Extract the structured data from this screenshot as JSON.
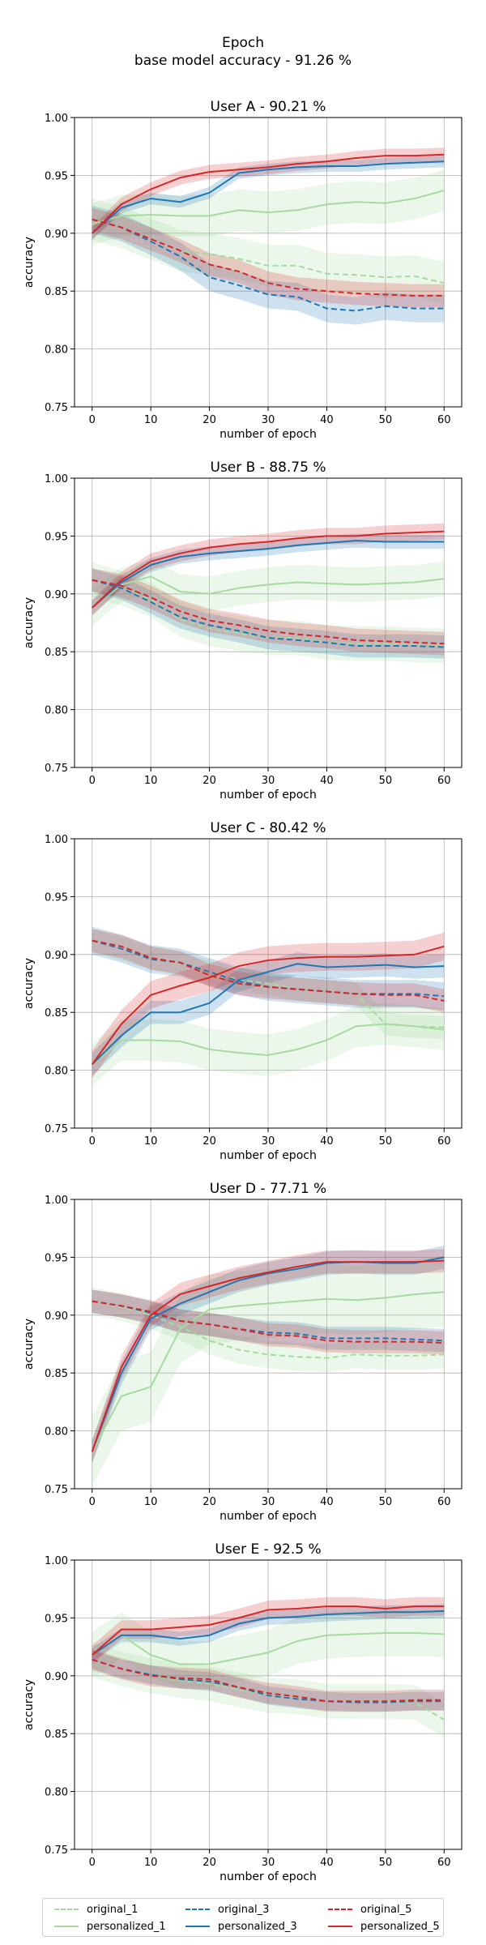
{
  "figure": {
    "title_line1": "Epoch",
    "title_line2": "base model accuracy - 91.26 %"
  },
  "legend": {
    "items": [
      {
        "label": "original_1",
        "color": "#a6dba0",
        "style": "dashed"
      },
      {
        "label": "personalized_1",
        "color": "#a6dba0",
        "style": "solid"
      },
      {
        "label": "original_3",
        "color": "#1f77b4",
        "style": "dashed"
      },
      {
        "label": "personalized_3",
        "color": "#1f77b4",
        "style": "solid"
      },
      {
        "label": "original_5",
        "color": "#d62728",
        "style": "dashed"
      },
      {
        "label": "personalized_5",
        "color": "#d62728",
        "style": "solid"
      }
    ]
  },
  "chart_data": [
    {
      "type": "line",
      "title": "User A - 90.21 %",
      "xlabel": "number of epoch",
      "ylabel": "accuracy",
      "xlim": [
        -3,
        63
      ],
      "ylim": [
        0.75,
        1.0
      ],
      "xticks": [
        0,
        10,
        20,
        30,
        40,
        50,
        60
      ],
      "yticks": [
        0.75,
        0.8,
        0.85,
        0.9,
        0.95,
        1.0
      ],
      "grid": true,
      "x": [
        0,
        5,
        10,
        15,
        20,
        25,
        30,
        35,
        40,
        45,
        50,
        55,
        60
      ],
      "series": [
        {
          "name": "original_1",
          "color": "#a6dba0",
          "style": "dashed",
          "values": [
            0.912,
            0.905,
            0.895,
            0.885,
            0.882,
            0.878,
            0.872,
            0.872,
            0.865,
            0.864,
            0.862,
            0.863,
            0.857
          ],
          "band": 0.018
        },
        {
          "name": "personalized_1",
          "color": "#a6dba0",
          "style": "solid",
          "values": [
            0.908,
            0.915,
            0.916,
            0.915,
            0.915,
            0.92,
            0.918,
            0.92,
            0.925,
            0.927,
            0.926,
            0.93,
            0.937
          ],
          "band": 0.018
        },
        {
          "name": "original_3",
          "color": "#1f77b4",
          "style": "dashed",
          "values": [
            0.912,
            0.905,
            0.893,
            0.88,
            0.862,
            0.855,
            0.847,
            0.845,
            0.835,
            0.833,
            0.837,
            0.835,
            0.835
          ],
          "band": 0.012
        },
        {
          "name": "personalized_3",
          "color": "#1f77b4",
          "style": "solid",
          "values": [
            0.9,
            0.922,
            0.93,
            0.927,
            0.935,
            0.952,
            0.955,
            0.957,
            0.958,
            0.958,
            0.96,
            0.961,
            0.962
          ],
          "band": 0.005
        },
        {
          "name": "original_5",
          "color": "#d62728",
          "style": "dashed",
          "values": [
            0.912,
            0.905,
            0.895,
            0.885,
            0.873,
            0.867,
            0.857,
            0.852,
            0.85,
            0.848,
            0.847,
            0.846,
            0.846
          ],
          "band": 0.01
        },
        {
          "name": "personalized_5",
          "color": "#d62728",
          "style": "solid",
          "values": [
            0.9,
            0.925,
            0.938,
            0.948,
            0.953,
            0.955,
            0.957,
            0.96,
            0.962,
            0.965,
            0.967,
            0.967,
            0.968
          ],
          "band": 0.006
        }
      ]
    },
    {
      "type": "line",
      "title": "User B - 88.75 %",
      "xlabel": "number of epoch",
      "ylabel": "accuracy",
      "xlim": [
        -3,
        63
      ],
      "ylim": [
        0.75,
        1.0
      ],
      "xticks": [
        0,
        10,
        20,
        30,
        40,
        50,
        60
      ],
      "yticks": [
        0.75,
        0.8,
        0.85,
        0.9,
        0.95,
        1.0
      ],
      "grid": true,
      "x": [
        0,
        5,
        10,
        15,
        20,
        25,
        30,
        35,
        40,
        45,
        50,
        55,
        60
      ],
      "series": [
        {
          "name": "original_1",
          "color": "#a6dba0",
          "style": "dashed",
          "values": [
            0.912,
            0.905,
            0.895,
            0.878,
            0.87,
            0.866,
            0.862,
            0.862,
            0.858,
            0.857,
            0.857,
            0.856,
            0.855
          ],
          "band": 0.015
        },
        {
          "name": "personalized_1",
          "color": "#a6dba0",
          "style": "solid",
          "values": [
            0.888,
            0.908,
            0.915,
            0.902,
            0.9,
            0.905,
            0.908,
            0.91,
            0.909,
            0.908,
            0.909,
            0.91,
            0.913
          ],
          "band": 0.015
        },
        {
          "name": "original_3",
          "color": "#1f77b4",
          "style": "dashed",
          "values": [
            0.912,
            0.905,
            0.893,
            0.88,
            0.873,
            0.868,
            0.862,
            0.86,
            0.858,
            0.855,
            0.855,
            0.855,
            0.854
          ],
          "band": 0.01
        },
        {
          "name": "personalized_3",
          "color": "#1f77b4",
          "style": "solid",
          "values": [
            0.888,
            0.91,
            0.925,
            0.932,
            0.935,
            0.937,
            0.939,
            0.942,
            0.944,
            0.946,
            0.945,
            0.945,
            0.945
          ],
          "band": 0.006
        },
        {
          "name": "original_5",
          "color": "#d62728",
          "style": "dashed",
          "values": [
            0.912,
            0.907,
            0.897,
            0.885,
            0.877,
            0.873,
            0.868,
            0.865,
            0.863,
            0.86,
            0.859,
            0.858,
            0.857
          ],
          "band": 0.01
        },
        {
          "name": "personalized_5",
          "color": "#d62728",
          "style": "solid",
          "values": [
            0.888,
            0.912,
            0.928,
            0.935,
            0.94,
            0.943,
            0.945,
            0.948,
            0.95,
            0.95,
            0.952,
            0.953,
            0.954
          ],
          "band": 0.007
        }
      ]
    },
    {
      "type": "line",
      "title": "User C - 80.42 %",
      "xlabel": "number of epoch",
      "ylabel": "accuracy",
      "xlim": [
        -3,
        63
      ],
      "ylim": [
        0.75,
        1.0
      ],
      "xticks": [
        0,
        10,
        20,
        30,
        40,
        50,
        60
      ],
      "yticks": [
        0.75,
        0.8,
        0.85,
        0.9,
        0.95,
        1.0
      ],
      "grid": true,
      "x": [
        0,
        5,
        10,
        15,
        20,
        25,
        30,
        35,
        40,
        45,
        50,
        55,
        60
      ],
      "series": [
        {
          "name": "original_1",
          "color": "#a6dba0",
          "style": "dashed",
          "values": [
            0.912,
            0.905,
            0.897,
            0.892,
            0.885,
            0.878,
            0.875,
            0.87,
            0.868,
            0.866,
            0.84,
            0.838,
            0.837
          ],
          "band": 0.01
        },
        {
          "name": "personalized_1",
          "color": "#a6dba0",
          "style": "solid",
          "values": [
            0.805,
            0.826,
            0.826,
            0.825,
            0.818,
            0.815,
            0.813,
            0.818,
            0.826,
            0.838,
            0.84,
            0.838,
            0.835
          ],
          "band": 0.018
        },
        {
          "name": "original_3",
          "color": "#1f77b4",
          "style": "dashed",
          "values": [
            0.912,
            0.905,
            0.896,
            0.893,
            0.885,
            0.877,
            0.872,
            0.87,
            0.868,
            0.866,
            0.866,
            0.866,
            0.864
          ],
          "band": 0.012
        },
        {
          "name": "personalized_3",
          "color": "#1f77b4",
          "style": "solid",
          "values": [
            0.805,
            0.83,
            0.85,
            0.85,
            0.858,
            0.878,
            0.885,
            0.892,
            0.889,
            0.89,
            0.891,
            0.889,
            0.89
          ],
          "band": 0.01
        },
        {
          "name": "original_5",
          "color": "#d62728",
          "style": "dashed",
          "values": [
            0.912,
            0.907,
            0.897,
            0.893,
            0.882,
            0.875,
            0.872,
            0.87,
            0.868,
            0.866,
            0.865,
            0.865,
            0.86
          ],
          "band": 0.01
        },
        {
          "name": "personalized_5",
          "color": "#d62728",
          "style": "solid",
          "values": [
            0.805,
            0.84,
            0.865,
            0.873,
            0.88,
            0.89,
            0.895,
            0.897,
            0.898,
            0.898,
            0.899,
            0.9,
            0.907
          ],
          "band": 0.012
        }
      ]
    },
    {
      "type": "line",
      "title": "User D - 77.71 %",
      "xlabel": "number of epoch",
      "ylabel": "accuracy",
      "xlim": [
        -3,
        63
      ],
      "ylim": [
        0.75,
        1.0
      ],
      "xticks": [
        0,
        10,
        20,
        30,
        40,
        50,
        60
      ],
      "yticks": [
        0.75,
        0.8,
        0.85,
        0.9,
        0.95,
        1.0
      ],
      "grid": true,
      "x": [
        0,
        5,
        10,
        15,
        20,
        25,
        30,
        35,
        40,
        45,
        50,
        55,
        60
      ],
      "series": [
        {
          "name": "original_1",
          "color": "#a6dba0",
          "style": "dashed",
          "values": [
            0.912,
            0.907,
            0.9,
            0.89,
            0.878,
            0.87,
            0.866,
            0.864,
            0.863,
            0.866,
            0.865,
            0.865,
            0.866
          ],
          "band": 0.012
        },
        {
          "name": "personalized_1",
          "color": "#a6dba0",
          "style": "solid",
          "values": [
            0.782,
            0.83,
            0.838,
            0.888,
            0.905,
            0.908,
            0.91,
            0.912,
            0.914,
            0.913,
            0.915,
            0.918,
            0.92
          ],
          "band": 0.03
        },
        {
          "name": "original_3",
          "color": "#1f77b4",
          "style": "dashed",
          "values": [
            0.912,
            0.908,
            0.902,
            0.895,
            0.892,
            0.888,
            0.885,
            0.884,
            0.88,
            0.88,
            0.88,
            0.879,
            0.878
          ],
          "band": 0.01
        },
        {
          "name": "personalized_3",
          "color": "#1f77b4",
          "style": "solid",
          "values": [
            0.782,
            0.85,
            0.897,
            0.91,
            0.92,
            0.93,
            0.936,
            0.94,
            0.945,
            0.946,
            0.945,
            0.945,
            0.95
          ],
          "band": 0.01
        },
        {
          "name": "original_5",
          "color": "#d62728",
          "style": "dashed",
          "values": [
            0.912,
            0.908,
            0.903,
            0.895,
            0.892,
            0.888,
            0.883,
            0.882,
            0.878,
            0.877,
            0.877,
            0.877,
            0.876
          ],
          "band": 0.01
        },
        {
          "name": "personalized_5",
          "color": "#d62728",
          "style": "solid",
          "values": [
            0.782,
            0.855,
            0.9,
            0.918,
            0.925,
            0.932,
            0.937,
            0.942,
            0.946,
            0.946,
            0.946,
            0.946,
            0.947
          ],
          "band": 0.01
        }
      ]
    },
    {
      "type": "line",
      "title": "User E - 92.5 %",
      "xlabel": "number of epoch",
      "ylabel": "accuracy",
      "xlim": [
        -3,
        63
      ],
      "ylim": [
        0.75,
        1.0
      ],
      "xticks": [
        0,
        10,
        20,
        30,
        40,
        50,
        60
      ],
      "yticks": [
        0.75,
        0.8,
        0.85,
        0.9,
        0.95,
        1.0
      ],
      "grid": true,
      "x": [
        0,
        5,
        10,
        15,
        20,
        25,
        30,
        35,
        40,
        45,
        50,
        55,
        60
      ],
      "series": [
        {
          "name": "original_1",
          "color": "#a6dba0",
          "style": "dashed",
          "values": [
            0.914,
            0.906,
            0.9,
            0.896,
            0.893,
            0.888,
            0.883,
            0.882,
            0.878,
            0.878,
            0.878,
            0.877,
            0.862
          ],
          "band": 0.015
        },
        {
          "name": "personalized_1",
          "color": "#a6dba0",
          "style": "solid",
          "values": [
            0.918,
            0.935,
            0.918,
            0.91,
            0.91,
            0.915,
            0.92,
            0.93,
            0.935,
            0.936,
            0.937,
            0.937,
            0.936
          ],
          "band": 0.02
        },
        {
          "name": "original_3",
          "color": "#1f77b4",
          "style": "dashed",
          "values": [
            0.914,
            0.906,
            0.901,
            0.897,
            0.895,
            0.89,
            0.883,
            0.88,
            0.878,
            0.877,
            0.877,
            0.878,
            0.878
          ],
          "band": 0.008
        },
        {
          "name": "personalized_3",
          "color": "#1f77b4",
          "style": "solid",
          "values": [
            0.918,
            0.935,
            0.935,
            0.932,
            0.935,
            0.945,
            0.95,
            0.951,
            0.953,
            0.954,
            0.955,
            0.955,
            0.956
          ],
          "band": 0.006
        },
        {
          "name": "original_5",
          "color": "#d62728",
          "style": "dashed",
          "values": [
            0.914,
            0.906,
            0.9,
            0.898,
            0.897,
            0.89,
            0.885,
            0.882,
            0.878,
            0.878,
            0.878,
            0.879,
            0.879
          ],
          "band": 0.009
        },
        {
          "name": "personalized_5",
          "color": "#d62728",
          "style": "solid",
          "values": [
            0.918,
            0.94,
            0.94,
            0.942,
            0.944,
            0.95,
            0.957,
            0.958,
            0.96,
            0.96,
            0.958,
            0.96,
            0.96
          ],
          "band": 0.008
        }
      ]
    }
  ]
}
